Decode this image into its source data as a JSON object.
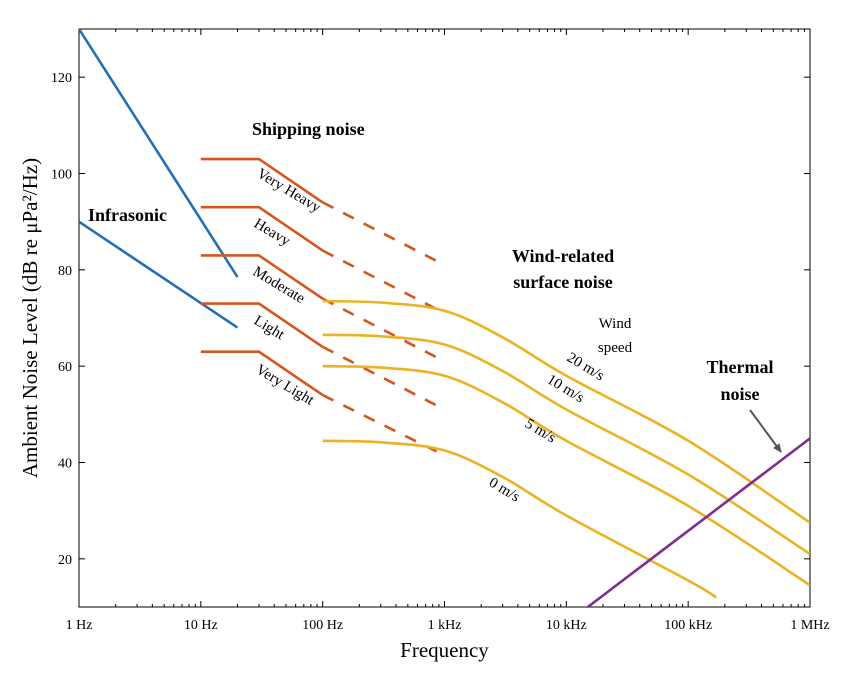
{
  "chart_data": {
    "type": "line",
    "title": "",
    "xlabel": "Frequency",
    "ylabel": "Ambient Noise Level (dB re μPa²/Hz)",
    "xscale": "log",
    "xlim": [
      1,
      1000000
    ],
    "ylim": [
      10,
      130
    ],
    "grid": false,
    "legend": "none",
    "x_ticks": [
      {
        "value": 1,
        "label": "1 Hz"
      },
      {
        "value": 10,
        "label": "10 Hz"
      },
      {
        "value": 100,
        "label": "100 Hz"
      },
      {
        "value": 1000,
        "label": "1 kHz"
      },
      {
        "value": 10000,
        "label": "10 kHz"
      },
      {
        "value": 100000,
        "label": "100 kHz"
      },
      {
        "value": 1000000,
        "label": "1 MHz"
      }
    ],
    "y_ticks": [
      {
        "value": 20,
        "label": "20"
      },
      {
        "value": 40,
        "label": "40"
      },
      {
        "value": 60,
        "label": "60"
      },
      {
        "value": 80,
        "label": "80"
      },
      {
        "value": 100,
        "label": "100"
      },
      {
        "value": 120,
        "label": "120"
      }
    ],
    "colors": {
      "infrasonic": "#2370b4",
      "shipping": "#d45520",
      "wind": "#ebb224",
      "thermal": "#7c2f90"
    },
    "series": [
      {
        "group": "infrasonic",
        "points": [
          [
            1,
            130
          ],
          [
            20,
            78.5
          ]
        ]
      },
      {
        "group": "infrasonic",
        "points": [
          [
            1,
            90
          ],
          [
            20,
            68
          ]
        ]
      },
      {
        "group": "shipping",
        "label": "Very Heavy",
        "points": [
          [
            10,
            103
          ],
          [
            30,
            103
          ],
          [
            100,
            94
          ]
        ],
        "dashed": [
          [
            100,
            94
          ],
          [
            1000,
            81
          ]
        ]
      },
      {
        "group": "shipping",
        "label": "Heavy",
        "points": [
          [
            10,
            93
          ],
          [
            30,
            93
          ],
          [
            100,
            84
          ]
        ],
        "dashed": [
          [
            100,
            84
          ],
          [
            1000,
            71
          ]
        ]
      },
      {
        "group": "shipping",
        "label": "Moderate",
        "points": [
          [
            10,
            83
          ],
          [
            30,
            83
          ],
          [
            100,
            74
          ]
        ],
        "dashed": [
          [
            100,
            74
          ],
          [
            1000,
            61
          ]
        ]
      },
      {
        "group": "shipping",
        "label": "Light",
        "points": [
          [
            10,
            73
          ],
          [
            30,
            73
          ],
          [
            100,
            64
          ]
        ],
        "dashed": [
          [
            100,
            64
          ],
          [
            1000,
            51
          ]
        ]
      },
      {
        "group": "shipping",
        "label": "Very Light",
        "points": [
          [
            10,
            63
          ],
          [
            30,
            63
          ],
          [
            100,
            54
          ]
        ],
        "dashed": [
          [
            100,
            54
          ],
          [
            1000,
            41.5
          ]
        ]
      },
      {
        "group": "wind",
        "label": "20 m/s",
        "points": [
          [
            100,
            73.5
          ],
          [
            300,
            73.2
          ],
          [
            1000,
            71.5
          ],
          [
            3000,
            66
          ],
          [
            10000,
            58
          ],
          [
            100000,
            44.5
          ],
          [
            1000000,
            27.5
          ]
        ]
      },
      {
        "group": "wind",
        "label": "10 m/s",
        "points": [
          [
            100,
            66.5
          ],
          [
            300,
            66.2
          ],
          [
            1000,
            64.5
          ],
          [
            3000,
            59
          ],
          [
            10000,
            51
          ],
          [
            100000,
            37.5
          ],
          [
            1000000,
            21
          ]
        ]
      },
      {
        "group": "wind",
        "label": "5 m/s",
        "points": [
          [
            100,
            60
          ],
          [
            300,
            59.7
          ],
          [
            1000,
            58
          ],
          [
            3000,
            52.5
          ],
          [
            10000,
            44.5
          ],
          [
            100000,
            31
          ],
          [
            1000000,
            14.5
          ]
        ]
      },
      {
        "group": "wind",
        "label": "0 m/s",
        "points": [
          [
            100,
            44.5
          ],
          [
            300,
            44.2
          ],
          [
            1000,
            42.5
          ],
          [
            3000,
            37
          ],
          [
            10000,
            29
          ],
          [
            100000,
            15.5
          ],
          [
            170000,
            12
          ]
        ]
      },
      {
        "group": "thermal",
        "label": "Thermal noise",
        "points": [
          [
            15000,
            10
          ],
          [
            1000000,
            45
          ]
        ]
      }
    ],
    "annotations": {
      "infrasonic": "Infrasonic",
      "shipping": "Shipping noise",
      "wind_line1": "Wind-related",
      "wind_line2": "surface noise",
      "wind_speed_line1": "Wind",
      "wind_speed_line2": "speed",
      "thermal_line1": "Thermal",
      "thermal_line2": "noise",
      "ship_very_heavy": "Very Heavy",
      "ship_heavy": "Heavy",
      "ship_moderate": "Moderate",
      "ship_light": "Light",
      "ship_very_light": "Very Light",
      "wind_20": "20 m/s",
      "wind_10": "10 m/s",
      "wind_5": "5 m/s",
      "wind_0": "0 m/s"
    }
  }
}
